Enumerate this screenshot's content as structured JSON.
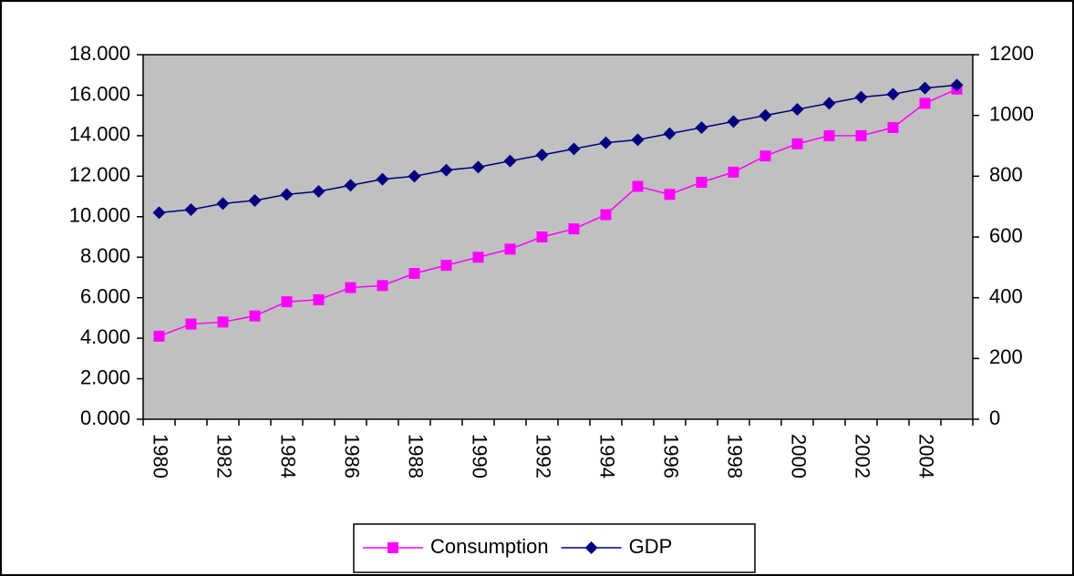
{
  "chart_data": {
    "type": "line",
    "categories": [
      "1980",
      null,
      "1982",
      null,
      "1984",
      null,
      "1986",
      null,
      "1988",
      null,
      "1990",
      null,
      "1992",
      null,
      "1994",
      null,
      "1996",
      null,
      "1998",
      null,
      "2000",
      null,
      "2002",
      null,
      "2004",
      null
    ],
    "series": [
      {
        "name": "Consumption",
        "color": "#ff00ff",
        "marker": "square",
        "axis": "y",
        "values": [
          4.1,
          4.7,
          4.8,
          5.1,
          5.8,
          5.9,
          6.5,
          6.6,
          7.2,
          7.6,
          8.0,
          8.4,
          9.0,
          9.4,
          10.1,
          11.5,
          11.1,
          11.7,
          12.2,
          13.0,
          13.6,
          14.0,
          14.0,
          14.4,
          15.6,
          16.3
        ]
      },
      {
        "name": "GDP",
        "color": "#000080",
        "marker": "diamond",
        "axis": "y2",
        "values": [
          680,
          690,
          710,
          720,
          740,
          750,
          770,
          790,
          800,
          820,
          830,
          850,
          870,
          890,
          910,
          920,
          940,
          960,
          980,
          1000,
          1020,
          1040,
          1060,
          1070,
          1090,
          1100
        ]
      }
    ],
    "ylim": [
      0,
      18
    ],
    "yticks": [
      {
        "value": 0,
        "label": "0.000"
      },
      {
        "value": 2,
        "label": "2.000"
      },
      {
        "value": 4,
        "label": "4.000"
      },
      {
        "value": 6,
        "label": "6.000"
      },
      {
        "value": 8,
        "label": "8.000"
      },
      {
        "value": 10,
        "label": "10.000"
      },
      {
        "value": 12,
        "label": "12.000"
      },
      {
        "value": 14,
        "label": "14.000"
      },
      {
        "value": 16,
        "label": "16.000"
      },
      {
        "value": 18,
        "label": "18.000"
      }
    ],
    "y2lim": [
      0,
      1200
    ],
    "y2ticks": [
      0,
      200,
      400,
      600,
      800,
      1000,
      1200
    ],
    "legend": "bottom"
  }
}
